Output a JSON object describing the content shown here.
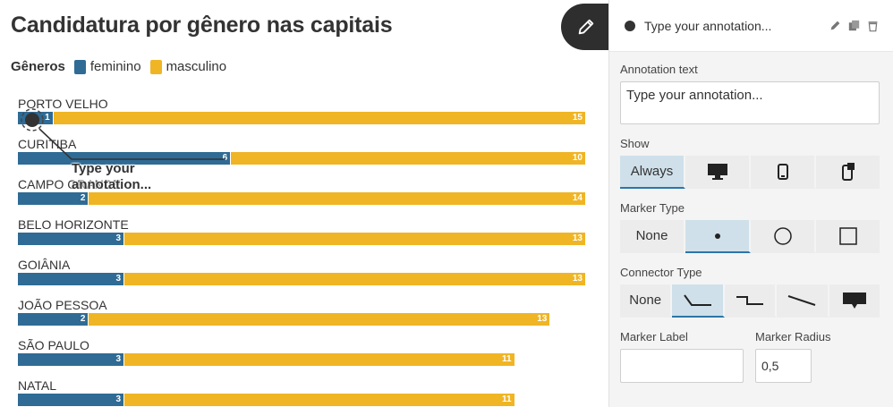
{
  "chart_data": {
    "type": "bar",
    "stacked": true,
    "orientation": "horizontal",
    "title": "Candidatura por gênero nas capitais",
    "legend_title": "Gêneros",
    "categories": [
      "PORTO VELHO",
      "CURITIBA",
      "CAMPO GRANDE",
      "BELO HORIZONTE",
      "GOIÂNIA",
      "JOÃO PESSOA",
      "SÃO PAULO",
      "NATAL"
    ],
    "series": [
      {
        "name": "feminino",
        "color": "#2f6b95",
        "values": [
          1,
          6,
          2,
          3,
          3,
          2,
          3,
          3
        ]
      },
      {
        "name": "masculino",
        "color": "#f0b524",
        "values": [
          15,
          10,
          14,
          13,
          13,
          13,
          11,
          11
        ]
      }
    ],
    "xlim": [
      0,
      16
    ]
  },
  "annotation": {
    "text": "Type your annotation..."
  },
  "panel": {
    "header_title": "Type your annotation...",
    "annotation_text_label": "Annotation text",
    "annotation_text_value": "Type your annotation...",
    "show_label": "Show",
    "show_options": [
      {
        "label": "Always",
        "icon": "",
        "active": true
      },
      {
        "label": "",
        "icon": "desktop-icon",
        "active": false
      },
      {
        "label": "",
        "icon": "mobile-icon",
        "active": false
      },
      {
        "label": "",
        "icon": "mobile-tooltip-icon",
        "active": false
      }
    ],
    "marker_type_label": "Marker Type",
    "marker_options": [
      {
        "label": "None",
        "icon": "",
        "active": false
      },
      {
        "label": "",
        "icon": "dot-icon",
        "active": true
      },
      {
        "label": "",
        "icon": "circle-icon",
        "active": false
      },
      {
        "label": "",
        "icon": "square-icon",
        "active": false
      }
    ],
    "connector_type_label": "Connector Type",
    "connector_options": [
      {
        "label": "None",
        "icon": "",
        "active": false
      },
      {
        "label": "",
        "icon": "elbow-connector-icon",
        "active": true
      },
      {
        "label": "",
        "icon": "step-connector-icon",
        "active": false
      },
      {
        "label": "",
        "icon": "straight-connector-icon",
        "active": false
      },
      {
        "label": "",
        "icon": "speech-bubble-icon",
        "active": false
      }
    ],
    "marker_label_label": "Marker Label",
    "marker_label_value": "",
    "marker_radius_label": "Marker Radius",
    "marker_radius_value": "0,5"
  }
}
